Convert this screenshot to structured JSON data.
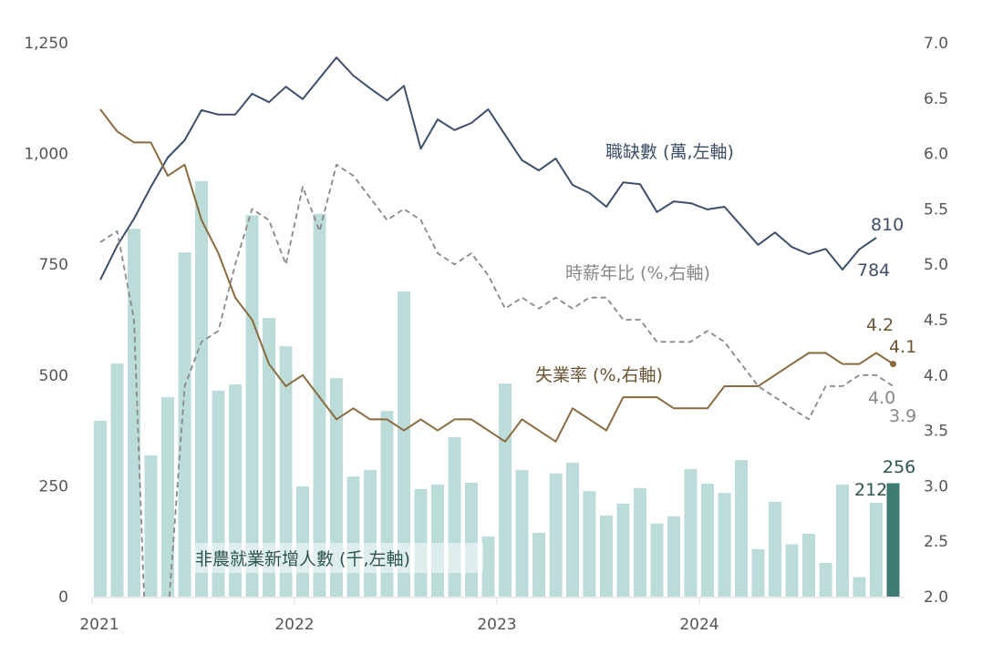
{
  "chart_data": {
    "type": "bar+line",
    "categories_start": "2021-01",
    "x_tick_labels": [
      "2021",
      "2022",
      "2023",
      "2024"
    ],
    "left_axis": {
      "ylim": [
        0,
        1250
      ],
      "ticks": [
        0,
        250,
        500,
        750,
        1000,
        1250
      ],
      "tick_labels": [
        "0",
        "250",
        "500",
        "750",
        "1,000",
        "1,250"
      ]
    },
    "right_axis": {
      "ylim": [
        2.0,
        7.0
      ],
      "ticks": [
        2.0,
        2.5,
        3.0,
        3.5,
        4.0,
        4.5,
        5.0,
        5.5,
        6.0,
        6.5,
        7.0
      ],
      "tick_labels": [
        "2.0",
        "2.5",
        "3.0",
        "3.5",
        "4.0",
        "4.5",
        "5.0",
        "5.5",
        "6.0",
        "6.5",
        "7.0"
      ]
    },
    "grid": false,
    "series": [
      {
        "name": "非農就業新增人數 (千,左軸)",
        "type": "bar",
        "axis": "left",
        "color": "#bcdcd9",
        "highlight_last_color": "#3f7b72",
        "values": [
          397,
          526,
          830,
          319,
          450,
          777,
          938,
          465,
          479,
          861,
          629,
          565,
          249,
          864,
          493,
          271,
          286,
          419,
          689,
          243,
          253,
          360,
          257,
          136,
          481,
          286,
          144,
          278,
          302,
          238,
          183,
          210,
          245,
          165,
          181,
          288,
          255,
          234,
          308,
          107,
          214,
          118,
          142,
          76,
          253,
          44,
          212,
          256
        ],
        "end_labels": [
          "212",
          "256"
        ]
      },
      {
        "name": "職缺數 (萬,左軸)",
        "type": "line",
        "axis": "left",
        "color": "#3d4f6a",
        "values": [
          715,
          792,
          853,
          925,
          991,
          1030,
          1098,
          1088,
          1088,
          1135,
          1116,
          1151,
          1123,
          1170,
          1217,
          1176,
          1147,
          1120,
          1153,
          1011,
          1077,
          1053,
          1069,
          1100,
          1042,
          985,
          962,
          989,
          929,
          911,
          880,
          935,
          931,
          868,
          892,
          888,
          874,
          880,
          837,
          794,
          822,
          789,
          773,
          785,
          738,
          784,
          810
        ],
        "end_labels": [
          "784",
          "810"
        ]
      },
      {
        "name": "時薪年比 (%,右軸)",
        "type": "line",
        "axis": "right",
        "color": "#888888",
        "dashed": true,
        "values": [
          5.2,
          5.3,
          4.5,
          0.3,
          1.8,
          3.9,
          4.3,
          4.4,
          5.0,
          5.5,
          5.4,
          5.0,
          5.7,
          5.3,
          5.9,
          5.8,
          5.6,
          5.4,
          5.5,
          5.4,
          5.1,
          5.0,
          5.1,
          4.9,
          4.6,
          4.7,
          4.6,
          4.7,
          4.6,
          4.7,
          4.7,
          4.5,
          4.5,
          4.3,
          4.3,
          4.3,
          4.4,
          4.3,
          4.1,
          3.9,
          3.8,
          3.7,
          3.6,
          3.9,
          3.9,
          4.0,
          4.0,
          3.9
        ],
        "end_labels": [
          "4.0",
          "3.9"
        ]
      },
      {
        "name": "失業率 (%,右軸)",
        "type": "line",
        "axis": "right",
        "color": "#8a6b3e",
        "values": [
          6.4,
          6.2,
          6.1,
          6.1,
          5.8,
          5.9,
          5.4,
          5.1,
          4.7,
          4.5,
          4.1,
          3.9,
          4.0,
          3.8,
          3.6,
          3.7,
          3.6,
          3.6,
          3.5,
          3.6,
          3.5,
          3.6,
          3.6,
          3.5,
          3.4,
          3.6,
          3.5,
          3.4,
          3.7,
          3.6,
          3.5,
          3.8,
          3.8,
          3.8,
          3.7,
          3.7,
          3.7,
          3.9,
          3.9,
          3.9,
          4.0,
          4.1,
          4.2,
          4.2,
          4.1,
          4.1,
          4.2,
          4.1
        ],
        "end_labels": [
          "4.2",
          "4.1"
        ]
      }
    ]
  }
}
